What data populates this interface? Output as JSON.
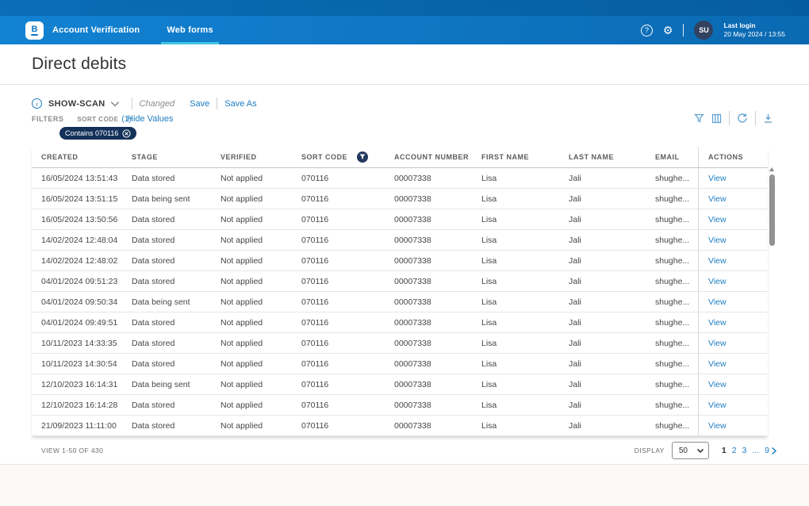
{
  "brand": {
    "logo_letter": "B"
  },
  "nav": {
    "tabs": [
      {
        "label": "Account Verification",
        "active": false
      },
      {
        "label": "Web forms",
        "active": true
      }
    ],
    "help_icon": "question-mark",
    "settings_icon": "gear",
    "avatar_initials": "SU",
    "last_login_label": "Last login",
    "last_login_value": "20 May 2024 / 13:55"
  },
  "page": {
    "title": "Direct debits"
  },
  "view_bar": {
    "view_name": "SHOW-SCAN",
    "changed_label": "Changed",
    "save_label": "Save",
    "save_as_label": "Save As"
  },
  "filters": {
    "label": "FILTERS",
    "field_label": "SORT CODE",
    "count": "(1)",
    "hide_values_label": "Hide Values",
    "chip_label": "Contains 070116",
    "chip_close_icon": "circle-x"
  },
  "toolbar": {
    "icons": [
      "filter",
      "columns",
      "refresh",
      "download"
    ]
  },
  "table": {
    "columns": [
      "CREATED",
      "STAGE",
      "VERIFIED",
      "SORT CODE",
      "ACCOUNT NUMBER",
      "FIRST NAME",
      "LAST NAME",
      "EMAIL",
      "ACTIONS"
    ],
    "filtered_column": "SORT CODE",
    "rows": [
      {
        "created": "16/05/2024 13:51:43",
        "stage": "Data stored",
        "verified": "Not applied",
        "sort_code": "070116",
        "account_number": "00007338",
        "first_name": "Lisa",
        "last_name": "Jali",
        "email": "shughe...",
        "action": "View"
      },
      {
        "created": "16/05/2024 13:51:15",
        "stage": "Data being sent",
        "verified": "Not applied",
        "sort_code": "070116",
        "account_number": "00007338",
        "first_name": "Lisa",
        "last_name": "Jali",
        "email": "shughe...",
        "action": "View"
      },
      {
        "created": "16/05/2024 13:50:56",
        "stage": "Data stored",
        "verified": "Not applied",
        "sort_code": "070116",
        "account_number": "00007338",
        "first_name": "Lisa",
        "last_name": "Jali",
        "email": "shughe...",
        "action": "View"
      },
      {
        "created": "14/02/2024 12:48:04",
        "stage": "Data stored",
        "verified": "Not applied",
        "sort_code": "070116",
        "account_number": "00007338",
        "first_name": "Lisa",
        "last_name": "Jali",
        "email": "shughe...",
        "action": "View"
      },
      {
        "created": "14/02/2024 12:48:02",
        "stage": "Data stored",
        "verified": "Not applied",
        "sort_code": "070116",
        "account_number": "00007338",
        "first_name": "Lisa",
        "last_name": "Jali",
        "email": "shughe...",
        "action": "View"
      },
      {
        "created": "04/01/2024 09:51:23",
        "stage": "Data stored",
        "verified": "Not applied",
        "sort_code": "070116",
        "account_number": "00007338",
        "first_name": "Lisa",
        "last_name": "Jali",
        "email": "shughe...",
        "action": "View"
      },
      {
        "created": "04/01/2024 09:50:34",
        "stage": "Data being sent",
        "verified": "Not applied",
        "sort_code": "070116",
        "account_number": "00007338",
        "first_name": "Lisa",
        "last_name": "Jali",
        "email": "shughe...",
        "action": "View"
      },
      {
        "created": "04/01/2024 09:49:51",
        "stage": "Data stored",
        "verified": "Not applied",
        "sort_code": "070116",
        "account_number": "00007338",
        "first_name": "Lisa",
        "last_name": "Jali",
        "email": "shughe...",
        "action": "View"
      },
      {
        "created": "10/11/2023 14:33:35",
        "stage": "Data stored",
        "verified": "Not applied",
        "sort_code": "070116",
        "account_number": "00007338",
        "first_name": "Lisa",
        "last_name": "Jali",
        "email": "shughe...",
        "action": "View"
      },
      {
        "created": "10/11/2023 14:30:54",
        "stage": "Data stored",
        "verified": "Not applied",
        "sort_code": "070116",
        "account_number": "00007338",
        "first_name": "Lisa",
        "last_name": "Jali",
        "email": "shughe...",
        "action": "View"
      },
      {
        "created": "12/10/2023 16:14:31",
        "stage": "Data being sent",
        "verified": "Not applied",
        "sort_code": "070116",
        "account_number": "00007338",
        "first_name": "Lisa",
        "last_name": "Jali",
        "email": "shughe...",
        "action": "View"
      },
      {
        "created": "12/10/2023 16:14:28",
        "stage": "Data stored",
        "verified": "Not applied",
        "sort_code": "070116",
        "account_number": "00007338",
        "first_name": "Lisa",
        "last_name": "Jali",
        "email": "shughe...",
        "action": "View"
      },
      {
        "created": "21/09/2023 11:11:00",
        "stage": "Data stored",
        "verified": "Not applied",
        "sort_code": "070116",
        "account_number": "00007338",
        "first_name": "Lisa",
        "last_name": "Jali",
        "email": "shughe...",
        "action": "View"
      }
    ]
  },
  "footer": {
    "view_text": "VIEW 1-50 OF 430",
    "display_label": "DISPLAY",
    "display_value": "50",
    "pages": [
      "1",
      "2",
      "3",
      "...",
      "9"
    ],
    "current_page": "1"
  },
  "colors": {
    "nav_blue": "#0f78c6",
    "top_strip_blue": "#0766ab",
    "accent_link_blue": "#1d7dc2",
    "active_tab_cyan": "#3fc6e0",
    "chip_navy": "#14315a",
    "avatar_navy": "#32415f"
  }
}
